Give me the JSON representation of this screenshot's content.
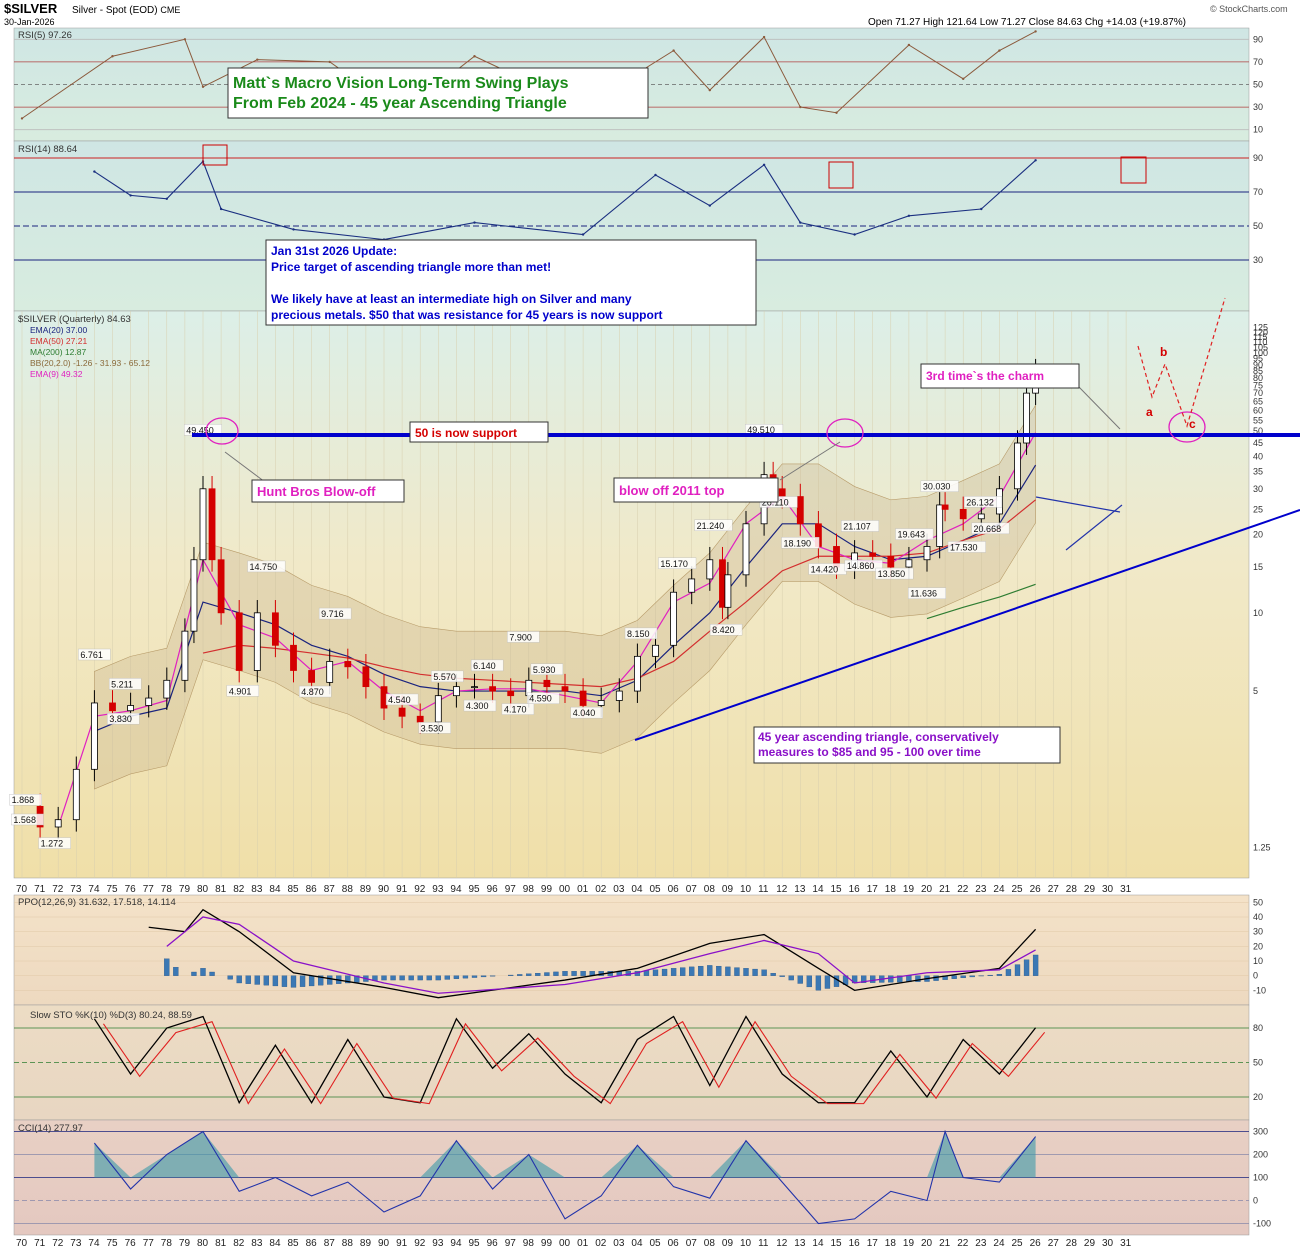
{
  "header": {
    "symbol": "$SILVER",
    "description": "Silver - Spot (EOD)",
    "exchange": "CME",
    "date": "30-Jan-2026",
    "ohlc": "Open 71.27  High 121.64  Low 71.27  Close 84.63  Chg +14.03 (+19.87%)",
    "watermark": "© StockCharts.com"
  },
  "annotations": {
    "title_line1": "Matt`s Macro Vision Long-Term Swing Plays",
    "title_line2": "From Feb 2024 - 45 year Ascending Triangle",
    "update_line1": "Jan 31st 2026 Update:",
    "update_line2": "Price target of ascending triangle more than met!",
    "update_line3": "We likely have at least an intermediate high on Silver and many",
    "update_line4": "precious metals. $50 that was resistance for 45 years is now support",
    "support": "50 is now support",
    "hunt": "Hunt Bros Blow-off",
    "blowoff2011": "blow off 2011 top",
    "charm": "3rd time`s the charm",
    "triangle_line1": "45 year ascending triangle, conservatively",
    "triangle_line2": "measures to $85 and 95 - 100 over time",
    "wave_a": "a",
    "wave_b": "b",
    "wave_c": "c"
  },
  "legend": {
    "rsi5": "RSI(5) 97.26",
    "rsi14": "RSI(14) 88.64",
    "main": "$SILVER (Quarterly) 84.63",
    "ema20": "EMA(20) 37.00",
    "ema50": "EMA(50) 27.21",
    "ma200": "MA(200) 12.87",
    "bb": "BB(20,2.0) -1.26 - 31.93 - 65.12",
    "ema9": "EMA(9) 49.32",
    "ppo": "PPO(12,26,9) 31.632, 17.518, 14.114",
    "sto": "Slow STO %K(10) %D(3) 80.24, 88.59",
    "cci": "CCI(14) 277.97"
  },
  "colors": {
    "up": "#000000",
    "down": "#d40000",
    "ema20": "#1a237e",
    "ema50": "#d32f2f",
    "ma200": "#2e7d32",
    "ema9": "#e020c0",
    "bb_fill": "#c8b490",
    "support_line": "#0000cc",
    "rsi_fill_pos": "#8b5a3c",
    "rsi14_fill": "#1a2f80"
  },
  "chart_data": [
    {
      "type": "line",
      "name": "RSI(5)",
      "y_ticks": [
        90,
        70,
        50,
        30,
        10
      ],
      "x": [
        1970,
        1975,
        1979,
        1980,
        1983,
        1987,
        1991,
        1995,
        2001,
        2006,
        2008,
        2011,
        2013,
        2015,
        2019,
        2022,
        2024,
        2026
      ],
      "y": [
        20,
        75,
        90,
        48,
        72,
        70,
        25,
        75,
        30,
        80,
        45,
        92,
        30,
        25,
        85,
        55,
        80,
        97
      ],
      "title": "RSI(5) 97.26"
    },
    {
      "type": "line",
      "name": "RSI(14)",
      "y_ticks": [
        90,
        70,
        50,
        30
      ],
      "x": [
        1974,
        1976,
        1978,
        1980,
        1981,
        1985,
        1990,
        1995,
        2001,
        2005,
        2008,
        2011,
        2013,
        2016,
        2019,
        2023,
        2026
      ],
      "y": [
        82,
        68,
        66,
        88,
        60,
        48,
        42,
        52,
        45,
        80,
        62,
        86,
        52,
        45,
        56,
        60,
        88.64
      ],
      "title": "RSI(14) 88.64"
    },
    {
      "type": "line",
      "name": "$SILVER (Quarterly)",
      "scale": "log",
      "x_ticks": [
        "70",
        "71",
        "72",
        "73",
        "74",
        "75",
        "76",
        "77",
        "78",
        "79",
        "80",
        "81",
        "82",
        "83",
        "84",
        "85",
        "86",
        "87",
        "88",
        "89",
        "90",
        "91",
        "92",
        "93",
        "94",
        "95",
        "96",
        "97",
        "98",
        "99",
        "00",
        "01",
        "02",
        "03",
        "04",
        "05",
        "06",
        "07",
        "08",
        "09",
        "10",
        "11",
        "12",
        "13",
        "14",
        "15",
        "16",
        "17",
        "18",
        "19",
        "20",
        "21",
        "22",
        "23",
        "24",
        "25",
        "26",
        "27",
        "28",
        "29",
        "30",
        "31"
      ],
      "y_ticks": [
        125,
        120,
        115,
        110,
        105,
        100,
        95,
        90,
        85,
        80,
        75,
        70,
        65,
        60,
        55,
        50,
        45,
        40,
        35,
        30,
        25,
        20,
        15,
        10,
        5,
        1.25
      ],
      "price_labels": [
        {
          "x": 1970.2,
          "y": 1.868,
          "label": "1.868"
        },
        {
          "x": 1970.3,
          "y": 1.568,
          "label": "1.568"
        },
        {
          "x": 1971.8,
          "y": 1.272,
          "label": "1.272"
        },
        {
          "x": 1974.0,
          "y": 6.761,
          "label": "6.761"
        },
        {
          "x": 1975.7,
          "y": 5.211,
          "label": "5.211"
        },
        {
          "x": 1975.6,
          "y": 3.83,
          "label": "3.830"
        },
        {
          "x": 1980.0,
          "y": 49.45,
          "label": "49.450"
        },
        {
          "x": 1982.2,
          "y": 4.901,
          "label": "4.901"
        },
        {
          "x": 1983.5,
          "y": 14.75,
          "label": "14.750"
        },
        {
          "x": 1986.2,
          "y": 4.87,
          "label": "4.870"
        },
        {
          "x": 1987.3,
          "y": 9.716,
          "label": "9.716"
        },
        {
          "x": 1991.0,
          "y": 4.54,
          "label": "4.540"
        },
        {
          "x": 1992.8,
          "y": 3.53,
          "label": "3.530"
        },
        {
          "x": 1993.5,
          "y": 5.57,
          "label": "5.570"
        },
        {
          "x": 1995.3,
          "y": 4.3,
          "label": "4.300"
        },
        {
          "x": 1995.7,
          "y": 6.14,
          "label": "6.140"
        },
        {
          "x": 1997.7,
          "y": 7.9,
          "label": "7.900"
        },
        {
          "x": 1997.4,
          "y": 4.17,
          "label": "4.170"
        },
        {
          "x": 1998.8,
          "y": 4.59,
          "label": "4.590"
        },
        {
          "x": 1999.0,
          "y": 5.93,
          "label": "5.930"
        },
        {
          "x": 2001.2,
          "y": 4.04,
          "label": "4.040"
        },
        {
          "x": 2004.2,
          "y": 8.15,
          "label": "8.150"
        },
        {
          "x": 2006.2,
          "y": 15.17,
          "label": "15.170"
        },
        {
          "x": 2008.2,
          "y": 21.24,
          "label": "21.240"
        },
        {
          "x": 2008.9,
          "y": 8.42,
          "label": "8.420"
        },
        {
          "x": 2011.0,
          "y": 49.51,
          "label": "49.510"
        },
        {
          "x": 2011.8,
          "y": 26.11,
          "label": "26.110"
        },
        {
          "x": 2013.0,
          "y": 18.19,
          "label": "18.190"
        },
        {
          "x": 2014.5,
          "y": 14.42,
          "label": "14.420"
        },
        {
          "x": 2016.3,
          "y": 21.107,
          "label": "21.107"
        },
        {
          "x": 2016.5,
          "y": 14.86,
          "label": "14.860"
        },
        {
          "x": 2018.2,
          "y": 13.85,
          "label": "13.850"
        },
        {
          "x": 2019.3,
          "y": 19.643,
          "label": "19.643"
        },
        {
          "x": 2020.0,
          "y": 11.636,
          "label": "11.636"
        },
        {
          "x": 2020.7,
          "y": 30.03,
          "label": "30.030"
        },
        {
          "x": 2023.1,
          "y": 26.132,
          "label": "26.132"
        },
        {
          "x": 2023.5,
          "y": 20.668,
          "label": "20.668"
        },
        {
          "x": 2022.2,
          "y": 17.53,
          "label": "17.530"
        }
      ],
      "series": [
        {
          "name": "$SILVER (Quarterly)",
          "x": [
            1970,
            1971,
            1972,
            1973,
            1974,
            1975,
            1976,
            1977,
            1978,
            1979,
            1979.5,
            1980,
            1980.5,
            1981,
            1982,
            1983,
            1984,
            1985,
            1986,
            1987,
            1988,
            1989,
            1990,
            1991,
            1992,
            1993,
            1994,
            1995,
            1996,
            1997,
            1998,
            1999,
            2000,
            2001,
            2002,
            2003,
            2004,
            2005,
            2006,
            2007,
            2008,
            2008.7,
            2009,
            2010,
            2011,
            2011.5,
            2012,
            2013,
            2014,
            2015,
            2016,
            2017,
            2018,
            2019,
            2020,
            2020.7,
            2021,
            2022,
            2023,
            2024,
            2025,
            2025.5,
            2026
          ],
          "y": [
            1.8,
            1.5,
            1.6,
            2.5,
            4.5,
            4.2,
            4.4,
            4.7,
            5.5,
            8.5,
            16,
            30,
            16,
            10,
            6,
            10,
            7.5,
            6.0,
            5.4,
            6.5,
            6.2,
            5.2,
            4.3,
            4.0,
            3.8,
            4.8,
            5.2,
            5.2,
            5.0,
            4.8,
            5.5,
            5.2,
            5.0,
            4.4,
            4.6,
            5.0,
            6.8,
            7.5,
            12,
            13.5,
            16,
            10.5,
            14,
            22,
            34,
            30,
            28,
            22,
            18,
            15,
            17,
            16.5,
            15,
            16,
            18,
            26,
            25,
            23,
            24,
            30,
            45,
            70,
            84.63
          ]
        },
        {
          "name": "EMA(20)",
          "x": [
            1974,
            1976,
            1978,
            1980,
            1982,
            1984,
            1986,
            1988,
            1990,
            1992,
            1994,
            1996,
            1998,
            2000,
            2002,
            2004,
            2006,
            2008,
            2010,
            2012,
            2014,
            2016,
            2018,
            2020,
            2022,
            2024,
            2026
          ],
          "y": [
            3.5,
            4.0,
            4.3,
            11,
            10,
            9,
            7.5,
            6.8,
            5.8,
            5.2,
            5.0,
            5.0,
            5.0,
            5.0,
            4.8,
            5.5,
            7.5,
            10,
            15,
            22,
            22,
            18,
            16,
            16.5,
            19,
            22,
            37
          ]
        },
        {
          "name": "EMA(50)",
          "x": [
            1980,
            1982,
            1984,
            1986,
            1988,
            1990,
            1992,
            1994,
            1996,
            1998,
            2000,
            2002,
            2004,
            2006,
            2008,
            2010,
            2012,
            2014,
            2016,
            2018,
            2020,
            2022,
            2024,
            2026
          ],
          "y": [
            7,
            7.5,
            7.3,
            7.0,
            6.7,
            6.2,
            5.8,
            5.6,
            5.5,
            5.4,
            5.3,
            5.2,
            5.6,
            6.5,
            8.5,
            11,
            14.5,
            16.5,
            16.5,
            16.5,
            17,
            19,
            21,
            27.21
          ]
        },
        {
          "name": "MA(200)",
          "x": [
            2020,
            2022,
            2024,
            2026
          ],
          "y": [
            9.5,
            10.5,
            11.5,
            12.87
          ]
        },
        {
          "name": "EMA(9)",
          "x": [
            1972,
            1974,
            1976,
            1978,
            1980,
            1982,
            1984,
            1986,
            1988,
            1990,
            1992,
            1994,
            1996,
            1998,
            2000,
            2002,
            2004,
            2006,
            2008,
            2010,
            2012,
            2014,
            2016,
            2018,
            2020,
            2022,
            2024,
            2026
          ],
          "y": [
            1.5,
            4.0,
            4.2,
            4.6,
            16,
            9,
            8,
            6,
            6.5,
            5.0,
            4.2,
            5.0,
            5.1,
            5.1,
            4.8,
            4.5,
            6.5,
            11,
            13,
            22,
            28,
            18,
            16,
            15.5,
            19,
            22,
            28,
            49.32
          ]
        }
      ]
    },
    {
      "type": "bar",
      "name": "PPO(12,26,9)",
      "y_ticks": [
        50,
        40,
        30,
        20,
        10,
        0,
        -10
      ],
      "series": [
        {
          "name": "PPO",
          "x": [
            1977,
            1979,
            1980,
            1982,
            1985,
            1990,
            1993,
            2000,
            2004,
            2008,
            2011,
            2014,
            2016,
            2020,
            2024,
            2026
          ],
          "y": [
            33,
            30,
            45,
            30,
            2,
            -8,
            -15,
            -3,
            5,
            22,
            28,
            5,
            -10,
            -2,
            5,
            31.632
          ]
        },
        {
          "name": "Signal",
          "x": [
            1978,
            1980,
            1982,
            1985,
            1990,
            1993,
            2000,
            2004,
            2008,
            2011,
            2014,
            2016,
            2020,
            2024,
            2026
          ],
          "y": [
            20,
            40,
            35,
            10,
            -5,
            -12,
            -6,
            2,
            15,
            24,
            15,
            -5,
            2,
            4,
            17.518
          ]
        }
      ]
    },
    {
      "type": "line",
      "name": "Slow STO %K(10) %D(3)",
      "y_ticks": [
        80,
        50,
        20
      ],
      "x": [
        1974,
        1976,
        1978,
        1980,
        1982,
        1984,
        1986,
        1988,
        1990,
        1992,
        1994,
        1996,
        1998,
        2000,
        2002,
        2004,
        2006,
        2008,
        2010,
        2012,
        2014,
        2016,
        2018,
        2020,
        2022,
        2024,
        2026
      ],
      "y": [
        88,
        40,
        80,
        90,
        15,
        65,
        15,
        70,
        20,
        15,
        88,
        45,
        75,
        40,
        15,
        70,
        90,
        30,
        90,
        40,
        15,
        15,
        60,
        20,
        70,
        40,
        80.24
      ]
    },
    {
      "type": "area",
      "name": "CCI(14)",
      "y_ticks": [
        300,
        200,
        100,
        0,
        -100
      ],
      "x": [
        1974,
        1976,
        1978,
        1980,
        1982,
        1984,
        1986,
        1988,
        1990,
        1992,
        1994,
        1996,
        1998,
        2000,
        2002,
        2004,
        2006,
        2008,
        2010,
        2012,
        2014,
        2016,
        2018,
        2020,
        2021,
        2022,
        2024,
        2026
      ],
      "y": [
        250,
        50,
        200,
        300,
        40,
        100,
        20,
        80,
        -50,
        20,
        260,
        50,
        200,
        -80,
        20,
        240,
        60,
        10,
        260,
        80,
        -100,
        -80,
        40,
        0,
        300,
        100,
        80,
        277.97
      ]
    }
  ]
}
